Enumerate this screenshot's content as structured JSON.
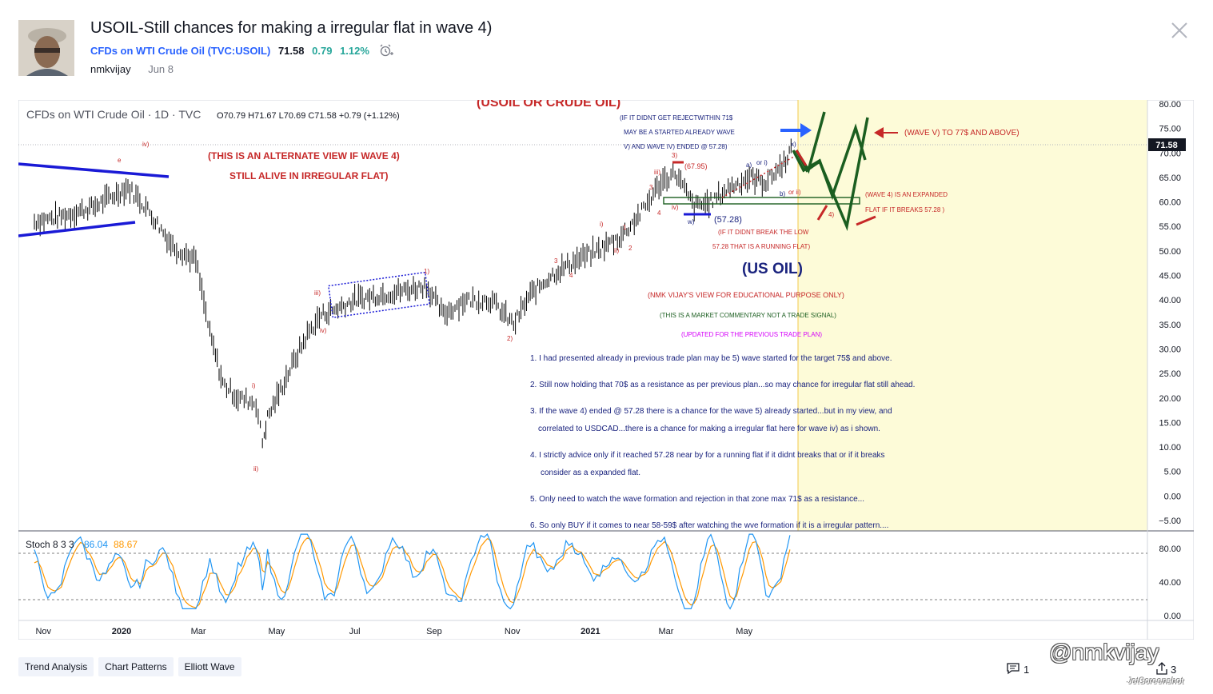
{
  "header": {
    "title": "USOIL-Still chances for making a irregular flat in wave 4)",
    "symbol_text": "CFDs on WTI Crude Oil (TVC:USOIL)",
    "price": "71.58",
    "change": "0.79",
    "change_pct": "1.12%",
    "author": "nmkvijay",
    "date": "Jun 8",
    "icons": [
      "avatar",
      "alarm-clock-icon",
      "close-icon"
    ]
  },
  "chart": {
    "legend_title": "CFDs on WTI Crude Oil · 1D · TVC",
    "ohlc": "O70.79  H71.67  L70.69  C71.58  +0.79 (+1.12%)",
    "top_title": "(USOIL OR CRUDE OIL)",
    "price_tag": "71.58",
    "annotations": {
      "alt_view_1": "(THIS IS AN ALTERNATE VIEW IF WAVE 4)",
      "alt_view_2": "STILL ALIVE IN IRREGULAR FLAT)",
      "reject_1": "(IF IT DIDNT GET REJECTWITHIN 71$",
      "reject_2": "MAY BE A STARTED ALREADY WAVE",
      "reject_3": "V) AND WAVE  IV) ENDED @ 57.28)",
      "wave_v": "(WAVE V) TO 77$ AND ABOVE)",
      "expanded_1": "(WAVE 4) IS AN EXPANDED",
      "expanded_2": "FLAT IF IT BREAKS 57.28 )",
      "low_label": "(57.28)",
      "high_label": "(67.95)",
      "running_1": "(IF IT DIDNT BREAK THE LOW",
      "running_2": "57.28 THAT IS A RUNNING FLAT)",
      "us_oil": "(US OIL)",
      "view": "(NMK VIJAY'S VIEW FOR EDUCATIONAL PURPOSE ONLY)",
      "commentary": "(THIS IS A MARKET COMMENTARY NOT A TRADE SIGNAL)",
      "updated": "(UPDATED FOR THE PREVIOUS TRADE PLAN)",
      "note_1": "1. I had presented already in previous trade plan may be 5) wave started for the target 75$ and above.",
      "note_2": "2. Still now holding that 70$ as a resistance as per previous plan...so may chance for irregular flat still ahead.",
      "note_3a": "3. If the wave 4) ended @ 57.28 there is a chance for the wave 5) already started...but in my view, and",
      "note_3b": "correlated to USDCAD...there is a chance for making a irregular flat here for wave iv) as i shown.",
      "note_4a": "4. I strictly advice only if it reached 57.28 near by for a running flat if it didnt breaks that or if it breaks",
      "note_4b": "consider as a expanded flat.",
      "note_5": "5. Only need to watch the wave formation and rejection in that zone max 71$ as a resistance...",
      "note_6": "6. So only BUY if it comes to near 58-59$ after watching the wve formation if it is a irregular pattern....",
      "wave_labels": [
        "e",
        "iv)",
        "i)",
        "ii)",
        "iii)",
        "iv)",
        "1)",
        "2)",
        "i)",
        "ii)",
        "1",
        "2",
        "3",
        "4",
        "iii)",
        "iv)",
        "w)",
        "3)",
        "3",
        "4",
        "a)",
        "or i)",
        "b)",
        "or ii)",
        "x)",
        "4)"
      ]
    },
    "stoch": {
      "label": "Stoch 8 3 3",
      "k": "86.04",
      "d": "88.67",
      "colors": {
        "k": "#2196f3",
        "d": "#ff9800"
      }
    },
    "colors": {
      "red_text": "#c62828",
      "blue_text": "#1a237e",
      "forecast_bg": "#fdfbd8",
      "green_path": "#1b5e20",
      "red_path": "#c62828",
      "blue_line": "#1a1ad6"
    }
  },
  "chart_data": {
    "type": "line",
    "title": "USOIL-Still chances for making a irregular flat in wave 4)",
    "x_tick_labels": [
      "Nov",
      "2020",
      "Mar",
      "May",
      "Jul",
      "Sep",
      "Nov",
      "2021",
      "Mar",
      "May"
    ],
    "y_tick_labels": [
      "80.00",
      "75.00",
      "70.00",
      "65.00",
      "60.00",
      "55.00",
      "50.00",
      "45.00",
      "40.00",
      "35.00",
      "30.00",
      "25.00",
      "20.00",
      "15.00",
      "10.00",
      "5.00",
      "0.00",
      "−5.00"
    ],
    "ylim": [
      -6,
      81
    ],
    "stoch_ticks": [
      "80.00",
      "40.00",
      "0.00"
    ],
    "stoch_lim": [
      -5,
      100
    ],
    "x": [
      "2019-10-25",
      "2019-11-15",
      "2019-12-10",
      "2020-01-06",
      "2020-01-20",
      "2020-02-10",
      "2020-02-28",
      "2020-03-10",
      "2020-03-20",
      "2020-04-01",
      "2020-04-15",
      "2020-04-20",
      "2020-04-24",
      "2020-05-10",
      "2020-05-25",
      "2020-06-05",
      "2020-06-15",
      "2020-07-01",
      "2020-07-20",
      "2020-08-10",
      "2020-08-26",
      "2020-09-08",
      "2020-09-25",
      "2020-10-15",
      "2020-11-02",
      "2020-11-15",
      "2020-12-01",
      "2020-12-20",
      "2021-01-06",
      "2021-01-25",
      "2021-02-10",
      "2021-02-25",
      "2021-03-08",
      "2021-03-23",
      "2021-04-05",
      "2021-04-20",
      "2021-05-05",
      "2021-05-18",
      "2021-06-01",
      "2021-06-08"
    ],
    "series": [
      {
        "values": [
          56,
          57,
          59,
          63,
          59,
          51,
          48,
          33,
          23,
          20,
          19,
          11,
          16,
          25,
          33,
          37,
          38,
          40,
          41,
          42,
          43,
          37,
          40,
          40,
          35,
          41,
          45,
          48,
          50,
          53,
          58,
          64,
          66,
          59,
          60,
          63,
          65,
          64,
          68,
          71.58
        ]
      },
      {
        "values": [
          50,
          48,
          82,
          25,
          86,
          30,
          15,
          35,
          20,
          80,
          50,
          20,
          75,
          40,
          85,
          60,
          30,
          75,
          45,
          82,
          70,
          20,
          55,
          75,
          18,
          60,
          84,
          55,
          78,
          35,
          82,
          65,
          45,
          20,
          70,
          40,
          78,
          35,
          80,
          86.04
        ]
      }
    ]
  },
  "tags": [
    "Trend Analysis",
    "Chart Patterns",
    "Elliott Wave"
  ],
  "footer": {
    "comments": "1",
    "shares": "3",
    "watermark": "@nmkvijay",
    "watermark_sub": "JetScreenshot"
  }
}
